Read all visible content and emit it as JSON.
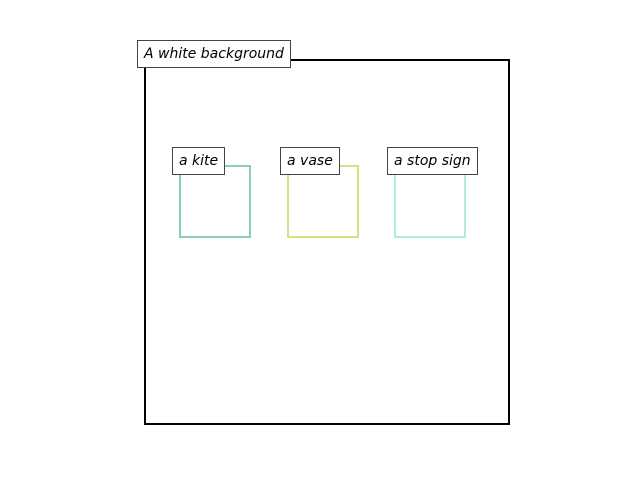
{
  "scene": {
    "title": "A white background",
    "background_color": "#ffffff",
    "frame_color": "#000000"
  },
  "objects": [
    {
      "label": "a kite",
      "color": "#88cfb3"
    },
    {
      "label": "a vase",
      "color": "#d4e284"
    },
    {
      "label": "a stop sign",
      "color": "#b2ecd6"
    }
  ]
}
